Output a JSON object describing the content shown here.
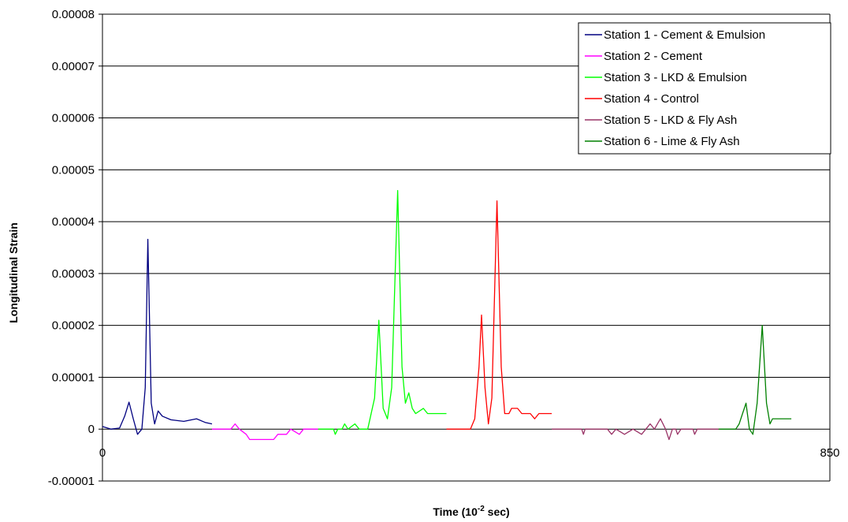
{
  "chart_data": {
    "type": "line",
    "title": "",
    "xlabel": "Time (10",
    "xlabel_sup": "-2",
    "xlabel_suffix": " sec)",
    "ylabel": "Longitudinal Strain",
    "xlim": [
      0,
      850
    ],
    "ylim": [
      -1e-05,
      8e-05
    ],
    "x_ticks": [
      "0",
      "850"
    ],
    "y_ticks": [
      "-0.00001",
      "0",
      "0.00001",
      "0.00002",
      "0.00003",
      "0.00004",
      "0.00005",
      "0.00006",
      "0.00007",
      "0.00008"
    ],
    "y_tick_values": [
      -1e-05,
      0,
      1e-05,
      2e-05,
      3e-05,
      4e-05,
      5e-05,
      6e-05,
      7e-05,
      8e-05
    ],
    "grid": true,
    "legend_position": "top-right",
    "series": [
      {
        "name": "Station 1 - Cement & Emulsion",
        "color": "#000080",
        "points": [
          [
            0,
            5e-07
          ],
          [
            10,
            0
          ],
          [
            20,
            2e-07
          ],
          [
            26,
            2.5e-06
          ],
          [
            31,
            5.2e-06
          ],
          [
            36,
            2e-06
          ],
          [
            41,
            -1e-06
          ],
          [
            46,
            0
          ],
          [
            50,
            8e-06
          ],
          [
            53,
            3.66e-05
          ],
          [
            57,
            5e-06
          ],
          [
            61,
            1e-06
          ],
          [
            65,
            3.5e-06
          ],
          [
            70,
            2.5e-06
          ],
          [
            80,
            1.8e-06
          ],
          [
            95,
            1.5e-06
          ],
          [
            110,
            2e-06
          ],
          [
            120,
            1.3e-06
          ],
          [
            128,
            1e-06
          ]
        ]
      },
      {
        "name": "Station 2 - Cement",
        "color": "#FF00FF",
        "points": [
          [
            128,
            0
          ],
          [
            150,
            0
          ],
          [
            155,
            1e-06
          ],
          [
            160,
            0
          ],
          [
            168,
            -1e-06
          ],
          [
            172,
            -2e-06
          ],
          [
            200,
            -2e-06
          ],
          [
            205,
            -1e-06
          ],
          [
            215,
            -1e-06
          ],
          [
            220,
            0
          ],
          [
            230,
            -1e-06
          ],
          [
            235,
            0
          ],
          [
            240,
            0
          ],
          [
            252,
            0
          ]
        ]
      },
      {
        "name": "Station 3 - LKD & Emulsion",
        "color": "#00FF00",
        "points": [
          [
            252,
            0
          ],
          [
            270,
            0
          ],
          [
            272,
            -1e-06
          ],
          [
            275,
            0
          ],
          [
            280,
            0
          ],
          [
            283,
            1e-06
          ],
          [
            287,
            0
          ],
          [
            295,
            1e-06
          ],
          [
            300,
            0
          ],
          [
            310,
            0
          ],
          [
            318,
            6e-06
          ],
          [
            323,
            2.1e-05
          ],
          [
            328,
            4e-06
          ],
          [
            333,
            2e-06
          ],
          [
            338,
            8e-06
          ],
          [
            345,
            4.6e-05
          ],
          [
            350,
            1.2e-05
          ],
          [
            354,
            5e-06
          ],
          [
            358,
            7e-06
          ],
          [
            362,
            4e-06
          ],
          [
            366,
            3e-06
          ],
          [
            375,
            4e-06
          ],
          [
            380,
            3e-06
          ],
          [
            402,
            3e-06
          ]
        ]
      },
      {
        "name": "Station 4 - Control",
        "color": "#FF0000",
        "points": [
          [
            402,
            0
          ],
          [
            430,
            0
          ],
          [
            435,
            2e-06
          ],
          [
            440,
            1.2e-05
          ],
          [
            443,
            2.2e-05
          ],
          [
            447,
            8e-06
          ],
          [
            451,
            1e-06
          ],
          [
            455,
            6e-06
          ],
          [
            461,
            4.4e-05
          ],
          [
            466,
            1.2e-05
          ],
          [
            470,
            3e-06
          ],
          [
            475,
            3e-06
          ],
          [
            478,
            4e-06
          ],
          [
            485,
            4e-06
          ],
          [
            490,
            3e-06
          ],
          [
            500,
            3e-06
          ],
          [
            505,
            2e-06
          ],
          [
            510,
            3e-06
          ],
          [
            525,
            3e-06
          ]
        ]
      },
      {
        "name": "Station 5 - LKD & Fly Ash",
        "color": "#993366",
        "points": [
          [
            525,
            0
          ],
          [
            560,
            0
          ],
          [
            562,
            -1e-06
          ],
          [
            564,
            0
          ],
          [
            590,
            0
          ],
          [
            595,
            -1e-06
          ],
          [
            600,
            0
          ],
          [
            610,
            -1e-06
          ],
          [
            620,
            0
          ],
          [
            630,
            -1e-06
          ],
          [
            635,
            0
          ],
          [
            640,
            1e-06
          ],
          [
            645,
            0
          ],
          [
            652,
            2e-06
          ],
          [
            658,
            0
          ],
          [
            662,
            -2e-06
          ],
          [
            666,
            0
          ],
          [
            670,
            0
          ],
          [
            672,
            -1e-06
          ],
          [
            676,
            0
          ],
          [
            690,
            0
          ],
          [
            692,
            -1e-06
          ],
          [
            695,
            0
          ],
          [
            720,
            0
          ]
        ]
      },
      {
        "name": "Station 6 - Lime & Fly Ash",
        "color": "#008000",
        "points": [
          [
            720,
            0
          ],
          [
            740,
            0
          ],
          [
            744,
            1e-06
          ],
          [
            748,
            3e-06
          ],
          [
            752,
            5e-06
          ],
          [
            756,
            0
          ],
          [
            760,
            -1e-06
          ],
          [
            765,
            5e-06
          ],
          [
            771,
            2e-05
          ],
          [
            776,
            5e-06
          ],
          [
            780,
            1e-06
          ],
          [
            783,
            2e-06
          ],
          [
            800,
            2e-06
          ],
          [
            805,
            2e-06
          ]
        ]
      }
    ]
  }
}
